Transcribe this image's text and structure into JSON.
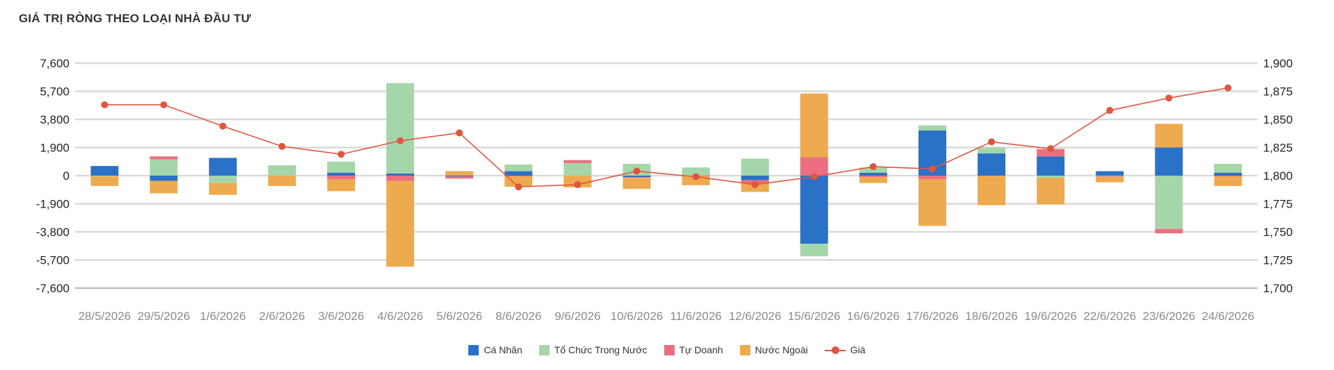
{
  "title": "GIÁ TRỊ RÒNG THEO LOẠI NHÀ ĐẦU TƯ",
  "chart_data": {
    "type": "bar",
    "stacked": true,
    "categories": [
      "28/5/2026",
      "29/5/2026",
      "1/6/2026",
      "2/6/2026",
      "3/6/2026",
      "4/6/2026",
      "5/6/2026",
      "8/6/2026",
      "9/6/2026",
      "10/6/2026",
      "11/6/2026",
      "12/6/2026",
      "15/6/2026",
      "16/6/2026",
      "17/6/2026",
      "18/6/2026",
      "19/6/2026",
      "22/6/2026",
      "23/6/2026",
      "24/6/2026"
    ],
    "y_left": {
      "ticks": [
        -7600,
        -5700,
        -3800,
        -1900,
        0,
        1900,
        3800,
        5700,
        7600
      ],
      "labels": [
        "-7,600",
        "-5,700",
        "-3,800",
        "-1,900",
        "0",
        "1,900",
        "3,800",
        "5,700",
        "7,600"
      ],
      "range": [
        -7600,
        7600
      ]
    },
    "y_right": {
      "ticks": [
        1700,
        1725,
        1750,
        1775,
        1800,
        1825,
        1850,
        1875,
        1900
      ],
      "labels": [
        "1,700",
        "1,725",
        "1,750",
        "1,775",
        "1,800",
        "1,825",
        "1,850",
        "1,875",
        "1,900"
      ],
      "range": [
        1700,
        1900
      ]
    },
    "grid": true,
    "legend_position": "bottom",
    "series": [
      {
        "name": "Cá Nhân",
        "type": "bar",
        "color": "#2a71c8",
        "values": [
          650,
          -350,
          1200,
          0,
          200,
          150,
          -50,
          300,
          0,
          -100,
          0,
          -300,
          -4600,
          200,
          3050,
          1500,
          1300,
          300,
          1900,
          200
        ]
      },
      {
        "name": "Tổ Chức Trong Nước",
        "type": "bar",
        "color": "#a5d6a9",
        "values": [
          -50,
          1100,
          -500,
          700,
          750,
          6100,
          0,
          450,
          850,
          800,
          550,
          1150,
          -850,
          350,
          350,
          400,
          -150,
          -50,
          -3600,
          600
        ]
      },
      {
        "name": "Tự Doanh",
        "type": "bar",
        "color": "#ec6f7f",
        "values": [
          0,
          200,
          0,
          0,
          -250,
          -350,
          -150,
          -50,
          200,
          -50,
          -50,
          -250,
          1250,
          -100,
          -250,
          0,
          500,
          -50,
          -300,
          -50
        ]
      },
      {
        "name": "Nước Ngoài",
        "type": "bar",
        "color": "#eeaa4f",
        "values": [
          -650,
          -850,
          -800,
          -700,
          -800,
          -5800,
          300,
          -700,
          -800,
          -750,
          -600,
          -550,
          4300,
          -400,
          -3150,
          -2000,
          -1800,
          -350,
          1600,
          -650
        ]
      },
      {
        "name": "Giá",
        "type": "line",
        "color": "#e0553f",
        "axis": "right",
        "values": [
          1863,
          1863,
          1844,
          1826,
          1819,
          1831,
          1838,
          1790,
          1792,
          1804,
          1799,
          1792,
          1799,
          1808,
          1806,
          1830,
          1824,
          1858,
          1869,
          1878
        ]
      }
    ]
  }
}
